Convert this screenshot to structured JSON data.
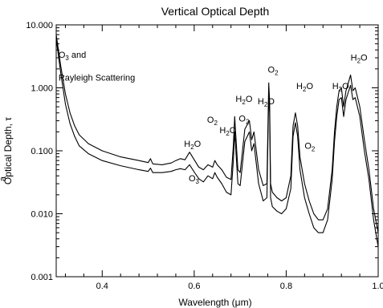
{
  "chart_data": {
    "type": "line",
    "title": "Vertical Optical Depth",
    "xlabel": "Wavelength",
    "xlabel_unit": "μm",
    "ylabel": "Optical Depth, τ",
    "ylabel_prefix": "a",
    "xscale": "linear",
    "yscale": "log",
    "xlim": [
      0.3,
      1.0
    ],
    "ylim": [
      0.001,
      10.0
    ],
    "x_ticks": [
      0.4,
      0.6,
      0.8,
      1.0
    ],
    "x_tick_labels": [
      "0.4",
      "0.6",
      "0.8",
      "1.0"
    ],
    "y_ticks": [
      0.001,
      0.01,
      0.1,
      1.0,
      10.0
    ],
    "y_tick_labels": [
      "0.001",
      "0.010",
      "0.100",
      "1.000",
      "10.000"
    ],
    "grid": false,
    "legend": "none",
    "annotations": [
      {
        "base": "O",
        "sub": "3",
        "rest": " and",
        "x": 0.305,
        "y": 3.0
      },
      {
        "base": "Rayleigh Scattering",
        "sub": "",
        "rest": "",
        "x": 0.305,
        "y": 1.3
      },
      {
        "base": "H",
        "sub": "2",
        "rest": "O",
        "x": 0.578,
        "y": 0.115
      },
      {
        "base": "O",
        "sub": "3",
        "rest": "",
        "x": 0.588,
        "y": 0.033
      },
      {
        "base": "O",
        "sub": "2",
        "rest": "",
        "x": 0.628,
        "y": 0.28
      },
      {
        "base": "H",
        "sub": "2",
        "rest": "O",
        "x": 0.655,
        "y": 0.19
      },
      {
        "base": "H",
        "sub": "2",
        "rest": "O",
        "x": 0.69,
        "y": 0.6
      },
      {
        "base": "O",
        "sub": "2",
        "rest": "",
        "x": 0.697,
        "y": 0.29
      },
      {
        "base": "H",
        "sub": "2",
        "rest": "O",
        "x": 0.738,
        "y": 0.55
      },
      {
        "base": "O",
        "sub": "2",
        "rest": "",
        "x": 0.76,
        "y": 1.75
      },
      {
        "base": "H",
        "sub": "2",
        "rest": "O",
        "x": 0.822,
        "y": 0.95
      },
      {
        "base": "O",
        "sub": "2",
        "rest": "",
        "x": 0.84,
        "y": 0.108
      },
      {
        "base": "H",
        "sub": "2",
        "rest": "O",
        "x": 0.9,
        "y": 0.95
      },
      {
        "base": "H",
        "sub": "2",
        "rest": "O",
        "x": 0.94,
        "y": 2.7
      }
    ],
    "series": [
      {
        "x": [
          0.3,
          0.31,
          0.32,
          0.33,
          0.34,
          0.35,
          0.37,
          0.4,
          0.44,
          0.48,
          0.5,
          0.505,
          0.51,
          0.53,
          0.55,
          0.56,
          0.57,
          0.58,
          0.59,
          0.6,
          0.61,
          0.62,
          0.63,
          0.64,
          0.645,
          0.65,
          0.66,
          0.67,
          0.68,
          0.685,
          0.688,
          0.69,
          0.695,
          0.7,
          0.71,
          0.72,
          0.725,
          0.73,
          0.74,
          0.75,
          0.758,
          0.762,
          0.764,
          0.766,
          0.77,
          0.78,
          0.79,
          0.8,
          0.81,
          0.815,
          0.82,
          0.825,
          0.83,
          0.84,
          0.85,
          0.86,
          0.87,
          0.88,
          0.89,
          0.9,
          0.905,
          0.91,
          0.915,
          0.92,
          0.925,
          0.93,
          0.935,
          0.94,
          0.945,
          0.95,
          0.96,
          0.97,
          0.98,
          0.99,
          1.0
        ],
        "y": [
          7.0,
          2.2,
          0.8,
          0.4,
          0.25,
          0.18,
          0.13,
          0.1,
          0.08,
          0.07,
          0.065,
          0.075,
          0.062,
          0.06,
          0.064,
          0.07,
          0.075,
          0.072,
          0.095,
          0.072,
          0.055,
          0.05,
          0.06,
          0.055,
          0.07,
          0.06,
          0.05,
          0.038,
          0.035,
          0.12,
          0.35,
          0.2,
          0.05,
          0.045,
          0.22,
          0.3,
          0.15,
          0.2,
          0.05,
          0.028,
          0.03,
          1.2,
          0.6,
          0.03,
          0.022,
          0.018,
          0.016,
          0.018,
          0.04,
          0.25,
          0.4,
          0.25,
          0.08,
          0.03,
          0.016,
          0.01,
          0.008,
          0.008,
          0.012,
          0.05,
          0.2,
          0.5,
          0.9,
          1.0,
          0.5,
          0.9,
          1.2,
          1.6,
          0.9,
          1.0,
          0.5,
          0.15,
          0.05,
          0.012,
          0.005
        ]
      },
      {
        "x": [
          0.3,
          0.31,
          0.32,
          0.33,
          0.34,
          0.35,
          0.37,
          0.4,
          0.44,
          0.48,
          0.5,
          0.505,
          0.51,
          0.53,
          0.55,
          0.56,
          0.57,
          0.58,
          0.59,
          0.6,
          0.61,
          0.62,
          0.63,
          0.64,
          0.645,
          0.65,
          0.66,
          0.67,
          0.68,
          0.685,
          0.688,
          0.69,
          0.695,
          0.7,
          0.71,
          0.72,
          0.725,
          0.73,
          0.74,
          0.75,
          0.758,
          0.762,
          0.764,
          0.766,
          0.77,
          0.78,
          0.79,
          0.8,
          0.81,
          0.815,
          0.82,
          0.825,
          0.83,
          0.84,
          0.85,
          0.86,
          0.87,
          0.88,
          0.89,
          0.9,
          0.905,
          0.91,
          0.915,
          0.92,
          0.925,
          0.93,
          0.935,
          0.94,
          0.945,
          0.95,
          0.96,
          0.97,
          0.98,
          0.99,
          1.0
        ],
        "y": [
          6.0,
          1.7,
          0.55,
          0.27,
          0.17,
          0.12,
          0.09,
          0.07,
          0.058,
          0.05,
          0.047,
          0.053,
          0.045,
          0.045,
          0.047,
          0.05,
          0.052,
          0.05,
          0.06,
          0.046,
          0.036,
          0.032,
          0.04,
          0.036,
          0.045,
          0.038,
          0.03,
          0.022,
          0.02,
          0.07,
          0.2,
          0.12,
          0.03,
          0.028,
          0.14,
          0.2,
          0.1,
          0.13,
          0.03,
          0.016,
          0.018,
          0.8,
          0.4,
          0.018,
          0.013,
          0.011,
          0.01,
          0.012,
          0.025,
          0.17,
          0.28,
          0.17,
          0.05,
          0.018,
          0.01,
          0.006,
          0.005,
          0.005,
          0.008,
          0.035,
          0.14,
          0.35,
          0.65,
          0.7,
          0.35,
          0.65,
          0.85,
          1.1,
          0.65,
          0.7,
          0.35,
          0.1,
          0.035,
          0.008,
          0.003
        ]
      }
    ]
  }
}
